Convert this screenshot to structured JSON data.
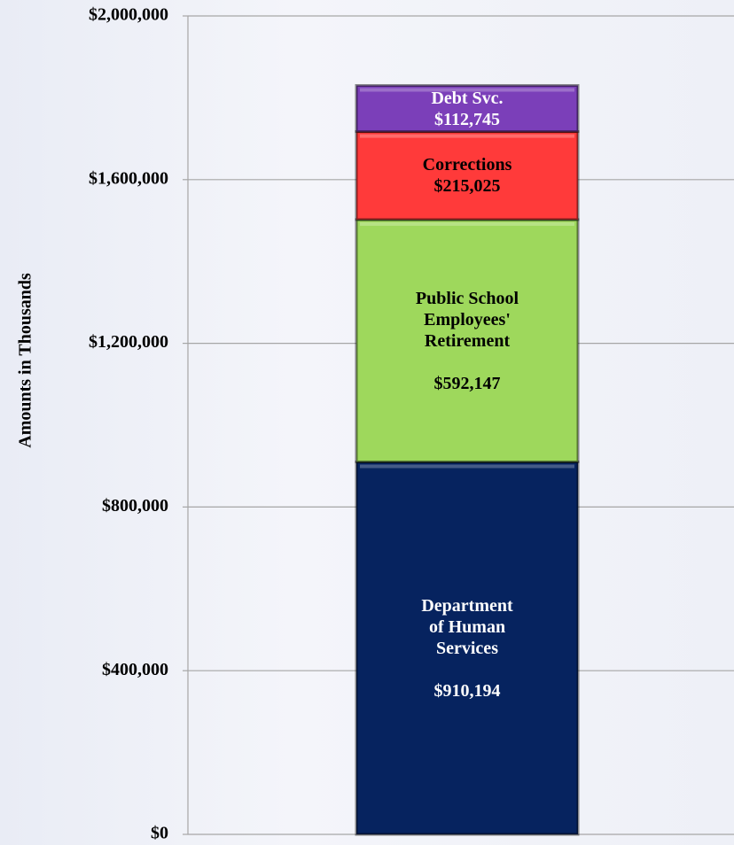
{
  "chart_data": {
    "type": "stacked_bar",
    "y_label": "Amounts in Thousands",
    "categories": [
      null
    ],
    "series": [
      {
        "name": "Department of Human Services",
        "color": "#06235f",
        "label_color": "#ffffff",
        "values": [
          910194
        ],
        "value_labels": [
          "$910,194"
        ]
      },
      {
        "name": "Public School Employees' Retirement",
        "color": "#9ed85c",
        "label_color": "#000000",
        "values": [
          592147
        ],
        "value_labels": [
          "$592,147"
        ]
      },
      {
        "name": "Corrections",
        "color": "#ff3a3a",
        "label_color": "#000000",
        "values": [
          215025
        ],
        "value_labels": [
          "$215,025"
        ]
      },
      {
        "name": "Debt Svc.",
        "color": "#7b3fb9",
        "label_color": "#ffffff",
        "values": [
          112745
        ],
        "value_labels": [
          "$112,745"
        ]
      }
    ],
    "ylim": [
      0,
      2000000
    ],
    "yticks": [
      {
        "value": 0,
        "label": "$0"
      },
      {
        "value": 400000,
        "label": "$400,000"
      },
      {
        "value": 800000,
        "label": "$800,000"
      },
      {
        "value": 1200000,
        "label": "$1,200,000"
      },
      {
        "value": 1600000,
        "label": "$1,600,000"
      },
      {
        "value": 2000000,
        "label": "$2,000,000"
      }
    ],
    "grid": true
  }
}
